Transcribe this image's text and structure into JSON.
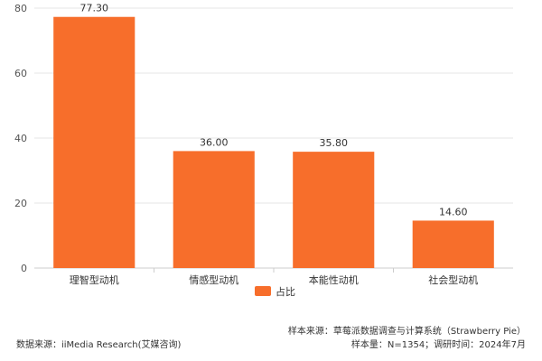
{
  "chart_data": {
    "type": "bar",
    "categories": [
      "理智型动机",
      "情感型动机",
      "本能性动机",
      "社会型动机"
    ],
    "series": [
      {
        "name": "占比",
        "values": [
          77.3,
          36.0,
          35.8,
          14.6
        ],
        "value_labels": [
          "77.30",
          "36.00",
          "35.80",
          "14.60"
        ],
        "color": "#f76e2b"
      }
    ],
    "ylim": [
      0,
      80
    ],
    "yticks": [
      0,
      20,
      40,
      60,
      80
    ],
    "ytick_labels": [
      "0",
      "20",
      "40",
      "60",
      "80"
    ],
    "grid": true,
    "grid_color": "#e6e6e6",
    "legend": "bottom-center",
    "title": "",
    "xlabel": "",
    "ylabel": ""
  },
  "footer": {
    "data_source": "数据来源：iiMedia Research(艾媒咨询)",
    "sample_source": "样本来源：草莓派数据调查与计算系统（Strawberry Pie）",
    "sample_size": "样本量：N=1354；调研时间：2024年7月"
  }
}
